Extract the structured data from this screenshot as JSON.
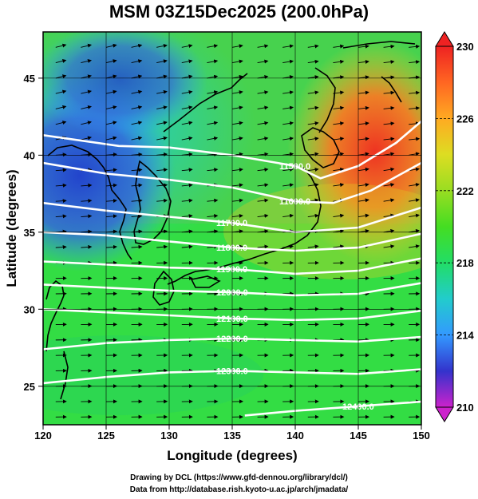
{
  "title": "MSM 03Z15Dec2025 (200.0hPa)",
  "credits": {
    "line1": "Drawing by DCL (https://www.gfd-dennou.org/library/dcl/)",
    "line2": "Data from http://database.rish.kyoto-u.ac.jp/arch/jmadata/"
  },
  "axes": {
    "xlabel": "Longitude (degrees)",
    "ylabel": "Latitude  (degrees)",
    "xlim": [
      120,
      150
    ],
    "ylim": [
      22.5,
      48
    ],
    "xticks": [
      "120",
      "125",
      "130",
      "135",
      "140",
      "145",
      "150"
    ],
    "yticks": [
      "25",
      "30",
      "35",
      "40",
      "45"
    ],
    "grid": true
  },
  "colorbar": {
    "range": [
      210,
      230
    ],
    "tick_labels": [
      "230",
      "226",
      "222",
      "218",
      "214",
      "210"
    ],
    "colors": [
      "#cc22cc",
      "#3333cc",
      "#3399ff",
      "#22cccc",
      "#22dd66",
      "#44dd22",
      "#99dd22",
      "#dddd22",
      "#ffaa22",
      "#ff6622",
      "#ee2222"
    ]
  },
  "chart_data": {
    "type": "heatmap",
    "variable": "temperature-shaded field with geopotential height contours and wind vectors",
    "contours": [
      {
        "label": "11500.0",
        "points": [
          [
            120,
            41.3
          ],
          [
            126,
            40.6
          ],
          [
            130,
            40.5
          ],
          [
            135,
            40.0
          ],
          [
            140,
            39.3
          ],
          [
            142,
            38.5
          ],
          [
            145,
            39.3
          ],
          [
            148,
            40.8
          ],
          [
            150,
            42.2
          ]
        ]
      },
      {
        "label": "11600.0",
        "points": [
          [
            120,
            39.5
          ],
          [
            125,
            38.8
          ],
          [
            130,
            38.4
          ],
          [
            135,
            37.9
          ],
          [
            140,
            37.0
          ],
          [
            143,
            36.9
          ],
          [
            146,
            37.7
          ],
          [
            150,
            39.5
          ]
        ]
      },
      {
        "label": "11700.0",
        "points": [
          [
            120,
            36.9
          ],
          [
            125,
            36.4
          ],
          [
            130,
            36.0
          ],
          [
            135,
            35.6
          ],
          [
            140,
            35.0
          ],
          [
            145,
            35.3
          ],
          [
            150,
            36.6
          ]
        ]
      },
      {
        "label": "11800.0",
        "points": [
          [
            120,
            35.0
          ],
          [
            125,
            34.8
          ],
          [
            130,
            34.4
          ],
          [
            135,
            34.0
          ],
          [
            140,
            33.8
          ],
          [
            145,
            34.0
          ],
          [
            150,
            34.9
          ]
        ]
      },
      {
        "label": "11900.0",
        "points": [
          [
            120,
            33.1
          ],
          [
            125,
            32.9
          ],
          [
            130,
            32.7
          ],
          [
            135,
            32.6
          ],
          [
            140,
            32.3
          ],
          [
            145,
            32.5
          ],
          [
            150,
            33.3
          ]
        ]
      },
      {
        "label": "12000.0",
        "points": [
          [
            120,
            31.6
          ],
          [
            125,
            31.4
          ],
          [
            130,
            31.2
          ],
          [
            135,
            31.1
          ],
          [
            140,
            30.9
          ],
          [
            145,
            31.0
          ],
          [
            150,
            31.7
          ]
        ]
      },
      {
        "label": "12100.0",
        "points": [
          [
            120,
            30.0
          ],
          [
            125,
            29.8
          ],
          [
            130,
            29.6
          ],
          [
            135,
            29.4
          ],
          [
            140,
            29.3
          ],
          [
            145,
            29.4
          ],
          [
            150,
            29.9
          ]
        ]
      },
      {
        "label": "12200.0",
        "points": [
          [
            120,
            27.4
          ],
          [
            125,
            27.8
          ],
          [
            130,
            28.0
          ],
          [
            135,
            28.1
          ],
          [
            140,
            28.0
          ],
          [
            145,
            27.9
          ],
          [
            150,
            28.2
          ]
        ]
      },
      {
        "label": "12300.0",
        "points": [
          [
            120,
            25.2
          ],
          [
            125,
            25.6
          ],
          [
            130,
            25.9
          ],
          [
            135,
            26.0
          ],
          [
            140,
            25.9
          ],
          [
            145,
            25.8
          ],
          [
            150,
            26.1
          ]
        ]
      },
      {
        "label": "12400.0",
        "points": [
          [
            136,
            23.1
          ],
          [
            140,
            23.4
          ],
          [
            145,
            23.7
          ],
          [
            150,
            24.0
          ]
        ]
      }
    ]
  }
}
